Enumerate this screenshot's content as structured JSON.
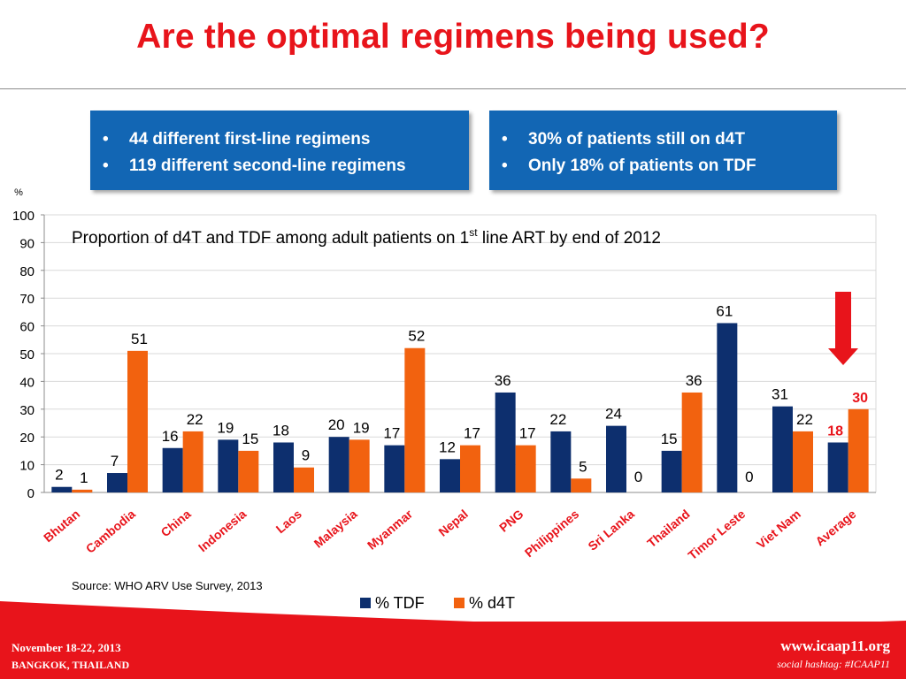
{
  "slide": {
    "title": "Are the optimal regimens being used?",
    "callouts": {
      "left": [
        "44 different first-line regimens",
        "119 different second-line regimens"
      ],
      "right": [
        "30% of patients still on d4T",
        "Only 18% of patients on TDF"
      ]
    },
    "source": "Source: WHO ARV Use Survey, 2013"
  },
  "chart_data": {
    "type": "bar",
    "title_main": "Proportion of d4T and TDF among adult patients on 1",
    "title_sup": "st",
    "title_tail": " line ART by end of 2012",
    "ylabel": "%",
    "ylim": [
      0,
      100
    ],
    "yticks": [
      "0",
      "10",
      "20",
      "30",
      "40",
      "50",
      "60",
      "70",
      "80",
      "90",
      "100"
    ],
    "grid": true,
    "legend_position": "bottom",
    "categories": [
      "Bhutan",
      "Cambodia",
      "China",
      "Indonesia",
      "Laos",
      "Malaysia",
      "Myanmar",
      "Nepal",
      "PNG",
      "Philippines",
      "Sri Lanka",
      "Thailand",
      "Timor Leste",
      "Viet Nam",
      "Average"
    ],
    "series": [
      {
        "name": "% TDF",
        "color": "#0d2f6e",
        "values": [
          2,
          7,
          16,
          19,
          18,
          20,
          17,
          12,
          36,
          22,
          24,
          15,
          61,
          31,
          18
        ],
        "labels": [
          "2",
          "7",
          "16",
          "19",
          "18",
          "20",
          "17",
          "12",
          "36",
          "22",
          "24",
          "15",
          "61",
          "31",
          "18"
        ]
      },
      {
        "name": "% d4T",
        "color": "#f2620f",
        "values": [
          1,
          51,
          22,
          15,
          9,
          19,
          52,
          17,
          17,
          5,
          0,
          36,
          0,
          22,
          30
        ],
        "labels": [
          "1",
          "51",
          "22",
          "15",
          "9",
          "19",
          "52",
          "17",
          "17",
          "5",
          "0",
          "36",
          "0",
          "22",
          "30"
        ]
      }
    ],
    "highlight_color": "#e8141b",
    "highlight_category": "Average"
  },
  "footer": {
    "date": "November 18-22, 2013",
    "place": "BANGKOK, THAILAND",
    "url": "www.icaap11.org",
    "hashtag": "social hashtag: #ICAAP11"
  }
}
